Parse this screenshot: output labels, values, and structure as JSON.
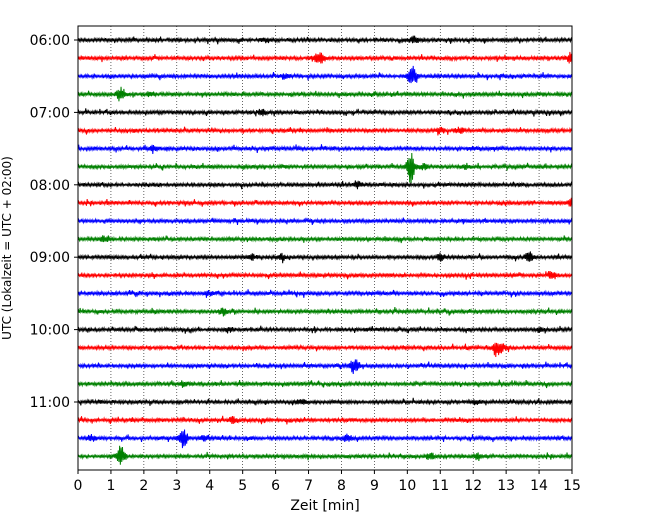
{
  "chart_data": {
    "type": "line",
    "title": "",
    "xlabel": "Zeit  [min]",
    "ylabel": "UTC (Lokalzeit = UTC + 02:00)",
    "xlim": [
      0,
      15
    ],
    "x_ticks": [
      "0",
      "1",
      "2",
      "3",
      "4",
      "5",
      "6",
      "7",
      "8",
      "9",
      "10",
      "11",
      "12",
      "13",
      "14",
      "15"
    ],
    "y_ticks": [
      "06:00",
      "07:00",
      "08:00",
      "09:00",
      "10:00",
      "11:00"
    ],
    "trace_interval_min": 15,
    "start_time": "06:00",
    "color_cycle": [
      "#000000",
      "#ff0000",
      "#0000ff",
      "#008000"
    ],
    "grid": "x-dotted",
    "traces": [
      {
        "time": "06:00",
        "events": [
          [
            5.7,
            0.3
          ],
          [
            10.2,
            0.5
          ]
        ]
      },
      {
        "time": "06:15",
        "events": [
          [
            7.2,
            0.4
          ],
          [
            7.4,
            0.6
          ],
          [
            15.0,
            1.0
          ]
        ]
      },
      {
        "time": "06:30",
        "events": [
          [
            6.3,
            0.4
          ],
          [
            10.15,
            1.6
          ]
        ]
      },
      {
        "time": "06:45",
        "events": [
          [
            1.3,
            1.0
          ],
          [
            2.2,
            0.3
          ]
        ]
      },
      {
        "time": "07:00",
        "events": [
          [
            5.6,
            0.5
          ]
        ]
      },
      {
        "time": "07:15",
        "events": [
          [
            11.0,
            0.4
          ],
          [
            11.6,
            0.4
          ]
        ]
      },
      {
        "time": "07:30",
        "events": [
          [
            2.3,
            0.4
          ],
          [
            12.0,
            0.3
          ]
        ]
      },
      {
        "time": "07:45",
        "events": [
          [
            10.1,
            2.2
          ],
          [
            10.5,
            0.4
          ],
          [
            11.8,
            0.3
          ]
        ]
      },
      {
        "time": "08:00",
        "events": [
          [
            8.5,
            0.5
          ]
        ]
      },
      {
        "time": "08:15",
        "events": [
          [
            15.0,
            0.6
          ]
        ]
      },
      {
        "time": "08:30",
        "events": []
      },
      {
        "time": "08:45",
        "events": [
          [
            0.8,
            0.4
          ]
        ]
      },
      {
        "time": "09:00",
        "events": [
          [
            5.3,
            0.4
          ],
          [
            6.2,
            0.4
          ],
          [
            11.0,
            0.6
          ],
          [
            13.7,
            0.7
          ]
        ]
      },
      {
        "time": "09:15",
        "events": [
          [
            14.4,
            0.5
          ]
        ]
      },
      {
        "time": "09:30",
        "events": [
          [
            4.0,
            0.3
          ]
        ]
      },
      {
        "time": "09:45",
        "events": [
          [
            4.4,
            0.5
          ]
        ]
      },
      {
        "time": "10:00",
        "events": [
          [
            4.6,
            0.3
          ],
          [
            14.0,
            0.3
          ]
        ]
      },
      {
        "time": "10:15",
        "events": [
          [
            12.7,
            1.1
          ],
          [
            12.9,
            0.4
          ]
        ]
      },
      {
        "time": "10:30",
        "events": [
          [
            8.4,
            1.2
          ]
        ]
      },
      {
        "time": "10:45",
        "events": [
          [
            3.2,
            0.4
          ]
        ]
      },
      {
        "time": "11:00",
        "events": [
          [
            6.8,
            0.4
          ],
          [
            12.1,
            0.3
          ]
        ]
      },
      {
        "time": "11:15",
        "events": [
          [
            4.7,
            0.4
          ]
        ]
      },
      {
        "time": "11:30",
        "events": [
          [
            0.4,
            0.4
          ],
          [
            3.2,
            1.5
          ],
          [
            3.8,
            0.4
          ],
          [
            8.2,
            0.5
          ]
        ]
      },
      {
        "time": "11:45",
        "events": [
          [
            1.3,
            1.4
          ],
          [
            10.7,
            0.4
          ],
          [
            12.1,
            0.4
          ]
        ]
      }
    ]
  }
}
